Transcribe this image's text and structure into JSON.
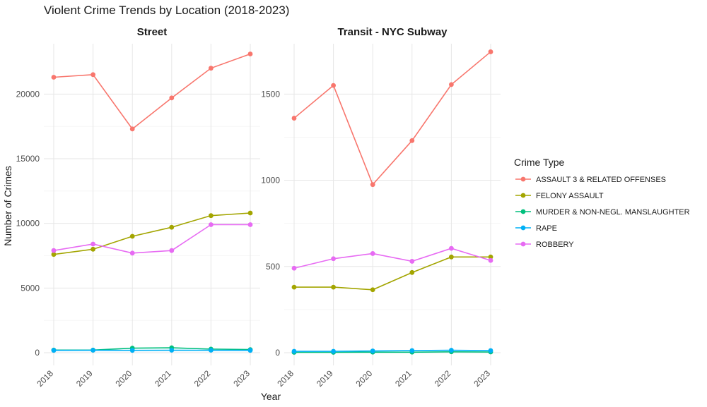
{
  "chart_data": {
    "type": "line",
    "title": "Violent Crime Trends by Location (2018-2023)",
    "xlabel": "Year",
    "ylabel": "Number of Crimes",
    "x": [
      2018,
      2019,
      2020,
      2021,
      2022,
      2023
    ],
    "grid": true,
    "legend": {
      "title": "Crime Type",
      "placement": "right",
      "entries": [
        {
          "label": "ASSAULT 3 & RELATED OFFENSES",
          "color": "#F8766D"
        },
        {
          "label": "FELONY ASSAULT",
          "color": "#A3A500"
        },
        {
          "label": "MURDER & NON-NEGL. MANSLAUGHTER",
          "color": "#00BF7D"
        },
        {
          "label": "RAPE",
          "color": "#00B0F6"
        },
        {
          "label": "ROBBERY",
          "color": "#E76BF3"
        }
      ]
    },
    "panels": [
      {
        "title": "Street",
        "ylim": [
          0,
          24000
        ],
        "yticks": [
          0,
          5000,
          10000,
          15000,
          20000
        ],
        "series": [
          {
            "name": "ASSAULT 3 & RELATED OFFENSES",
            "values": [
              21300,
              21500,
              17300,
              19700,
              22000,
              23100
            ]
          },
          {
            "name": "FELONY ASSAULT",
            "values": [
              7600,
              8000,
              9000,
              9700,
              10600,
              10800
            ]
          },
          {
            "name": "MURDER & NON-NEGL. MANSLAUGHTER",
            "values": [
              200,
              200,
              350,
              380,
              280,
              240
            ]
          },
          {
            "name": "RAPE",
            "values": [
              180,
              190,
              180,
              190,
              190,
              180
            ]
          },
          {
            "name": "ROBBERY",
            "values": [
              7900,
              8400,
              7700,
              7900,
              9900,
              9900
            ]
          }
        ]
      },
      {
        "title": "Transit - NYC Subway",
        "ylim": [
          0,
          1800
        ],
        "yticks": [
          0,
          500,
          1000,
          1500
        ],
        "series": [
          {
            "name": "ASSAULT 3 & RELATED OFFENSES",
            "values": [
              1360,
              1550,
              975,
              1230,
              1555,
              1745
            ]
          },
          {
            "name": "FELONY ASSAULT",
            "values": [
              380,
              380,
              365,
              465,
              555,
              555
            ]
          },
          {
            "name": "MURDER & NON-NEGL. MANSLAUGHTER",
            "values": [
              2,
              2,
              3,
              3,
              5,
              4
            ]
          },
          {
            "name": "RAPE",
            "values": [
              8,
              8,
              10,
              12,
              14,
              12
            ]
          },
          {
            "name": "ROBBERY",
            "values": [
              490,
              545,
              575,
              530,
              605,
              535
            ]
          }
        ]
      }
    ]
  }
}
